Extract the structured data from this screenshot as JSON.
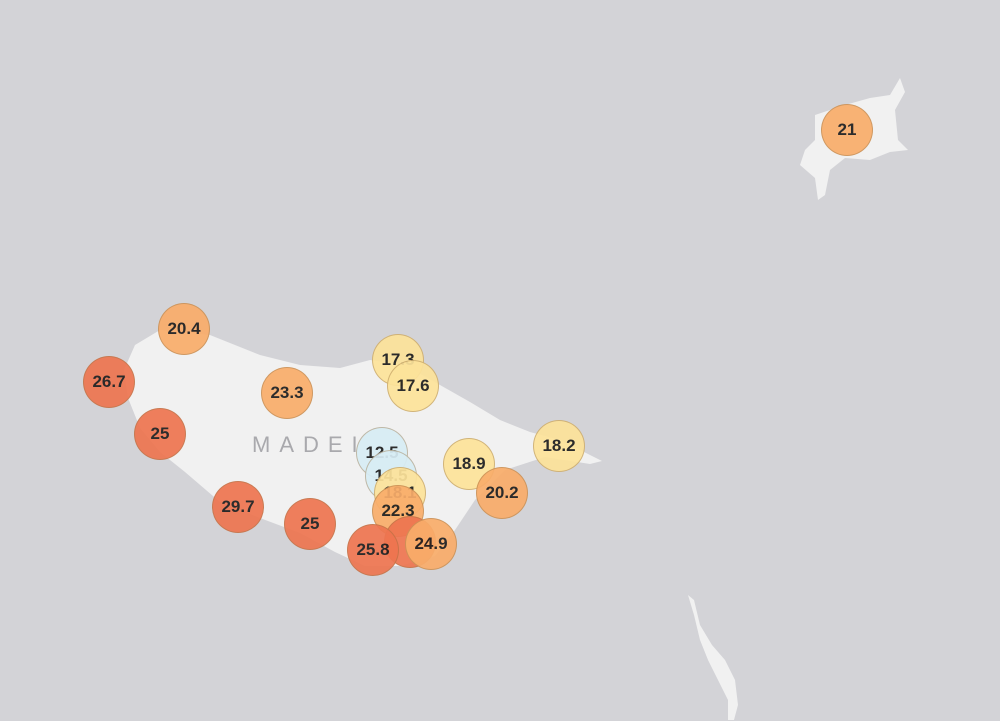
{
  "map": {
    "region_label": "MADEI",
    "colors": {
      "water": "#d3d3d7",
      "land": "#f1f1f1",
      "cool": "#d8edf5",
      "mild": "#fde39a",
      "warm": "#f9ad6a",
      "hot": "#ee7550"
    }
  },
  "markers": [
    {
      "value": "21",
      "level": "warm"
    },
    {
      "value": "20.4",
      "level": "warm"
    },
    {
      "value": "26.7",
      "level": "hot"
    },
    {
      "value": "25",
      "level": "hot"
    },
    {
      "value": "23.3",
      "level": "warm"
    },
    {
      "value": "29.7",
      "level": "hot"
    },
    {
      "value": "25",
      "level": "hot"
    },
    {
      "value": "17.3",
      "level": "mild"
    },
    {
      "value": "17.6",
      "level": "mild"
    },
    {
      "value": "12.5",
      "level": "cool"
    },
    {
      "value": "14.5",
      "level": "cool"
    },
    {
      "value": "18.1",
      "level": "mild"
    },
    {
      "value": "22.3",
      "level": "warm"
    },
    {
      "value": "",
      "level": "hot"
    },
    {
      "value": "25.8",
      "level": "hot"
    },
    {
      "value": "24.9",
      "level": "warm"
    },
    {
      "value": "18.9",
      "level": "mild"
    },
    {
      "value": "20.2",
      "level": "warm"
    },
    {
      "value": "18.2",
      "level": "mild"
    }
  ]
}
